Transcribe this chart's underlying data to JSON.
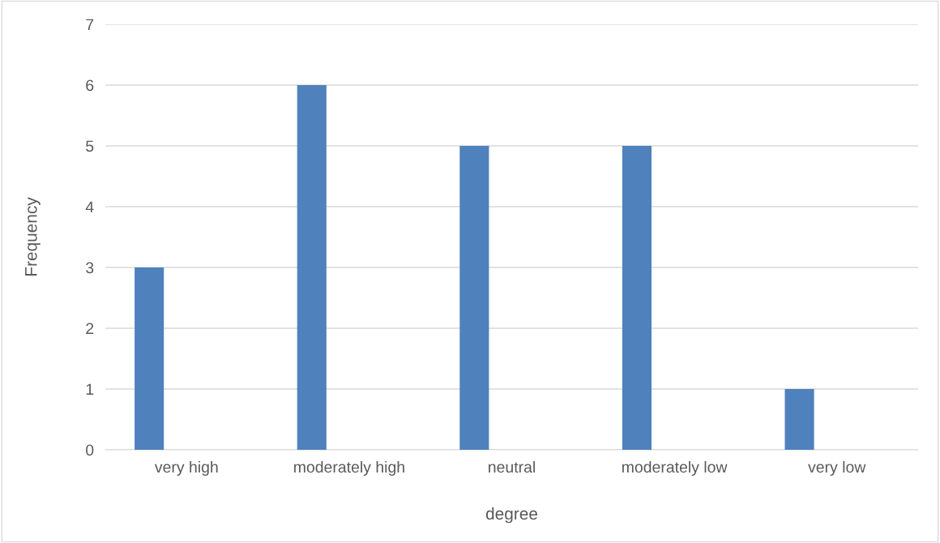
{
  "chart_data": {
    "type": "bar",
    "xlabel": "degree",
    "ylabel": "Frequency",
    "categories": [
      "very high",
      "moderately high",
      "neutral",
      "moderately low",
      "very low"
    ],
    "values": [
      3,
      6,
      5,
      5,
      1
    ],
    "color": "#4f81bd",
    "ylim": [
      0,
      7
    ],
    "yticks": [
      0,
      1,
      2,
      3,
      4,
      5,
      6,
      7
    ],
    "grid": "y"
  }
}
